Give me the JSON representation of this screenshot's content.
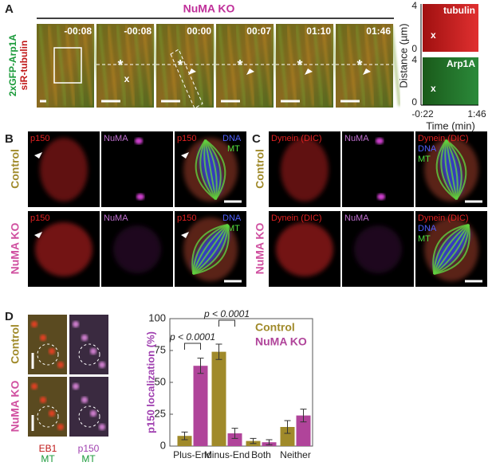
{
  "panels": {
    "A": {
      "label": "A",
      "title": "NuMA KO",
      "channels": [
        "2xGFP-Arp1A",
        "siR-tubulin"
      ],
      "timestamps": [
        "-00:08",
        "-00:08",
        "00:00",
        "00:07",
        "01:10",
        "01:46"
      ],
      "asterisk": "*",
      "cross": "x",
      "kymograph": {
        "labels": [
          "tubulin",
          "Arp1A"
        ],
        "y_label": "Distance (µm)",
        "y_ticks": [
          4,
          0
        ],
        "x_ticks": [
          "-0:22",
          "1:46"
        ],
        "x_label": "Time (min)"
      }
    },
    "B": {
      "label": "B",
      "rows": [
        "Control",
        "NuMA KO"
      ],
      "channels": [
        "p150",
        "NuMA",
        "p150",
        "DNA",
        "MT"
      ]
    },
    "C": {
      "label": "C",
      "rows": [
        "Control",
        "NuMA KO"
      ],
      "channels": [
        "Dynein (DIC)",
        "NuMA",
        "Dynein (DIC)",
        "DNA",
        "MT"
      ]
    },
    "D": {
      "label": "D",
      "rows": [
        "Control",
        "NuMA KO"
      ],
      "columns": [
        [
          "EB1",
          "MT"
        ],
        [
          "p150",
          "MT"
        ]
      ]
    }
  },
  "chart_data": {
    "type": "bar",
    "y_label": "p150 localization (%)",
    "categories": [
      "Plus-End",
      "Minus-End",
      "Both",
      "Neither"
    ],
    "series": [
      {
        "name": "Control",
        "color": "#a08a2a",
        "values": [
          8,
          74,
          4,
          15
        ],
        "errors": [
          3,
          6,
          2,
          5
        ]
      },
      {
        "name": "NuMA KO",
        "color": "#b0449a",
        "values": [
          63,
          10,
          3,
          24
        ],
        "errors": [
          6,
          4,
          2,
          5
        ]
      }
    ],
    "ylim": [
      0,
      100
    ],
    "yticks": [
      0,
      25,
      50,
      75,
      100
    ],
    "annotations": [
      "p < 0.0001",
      "p < 0.0001"
    ],
    "legend": "top-right"
  }
}
